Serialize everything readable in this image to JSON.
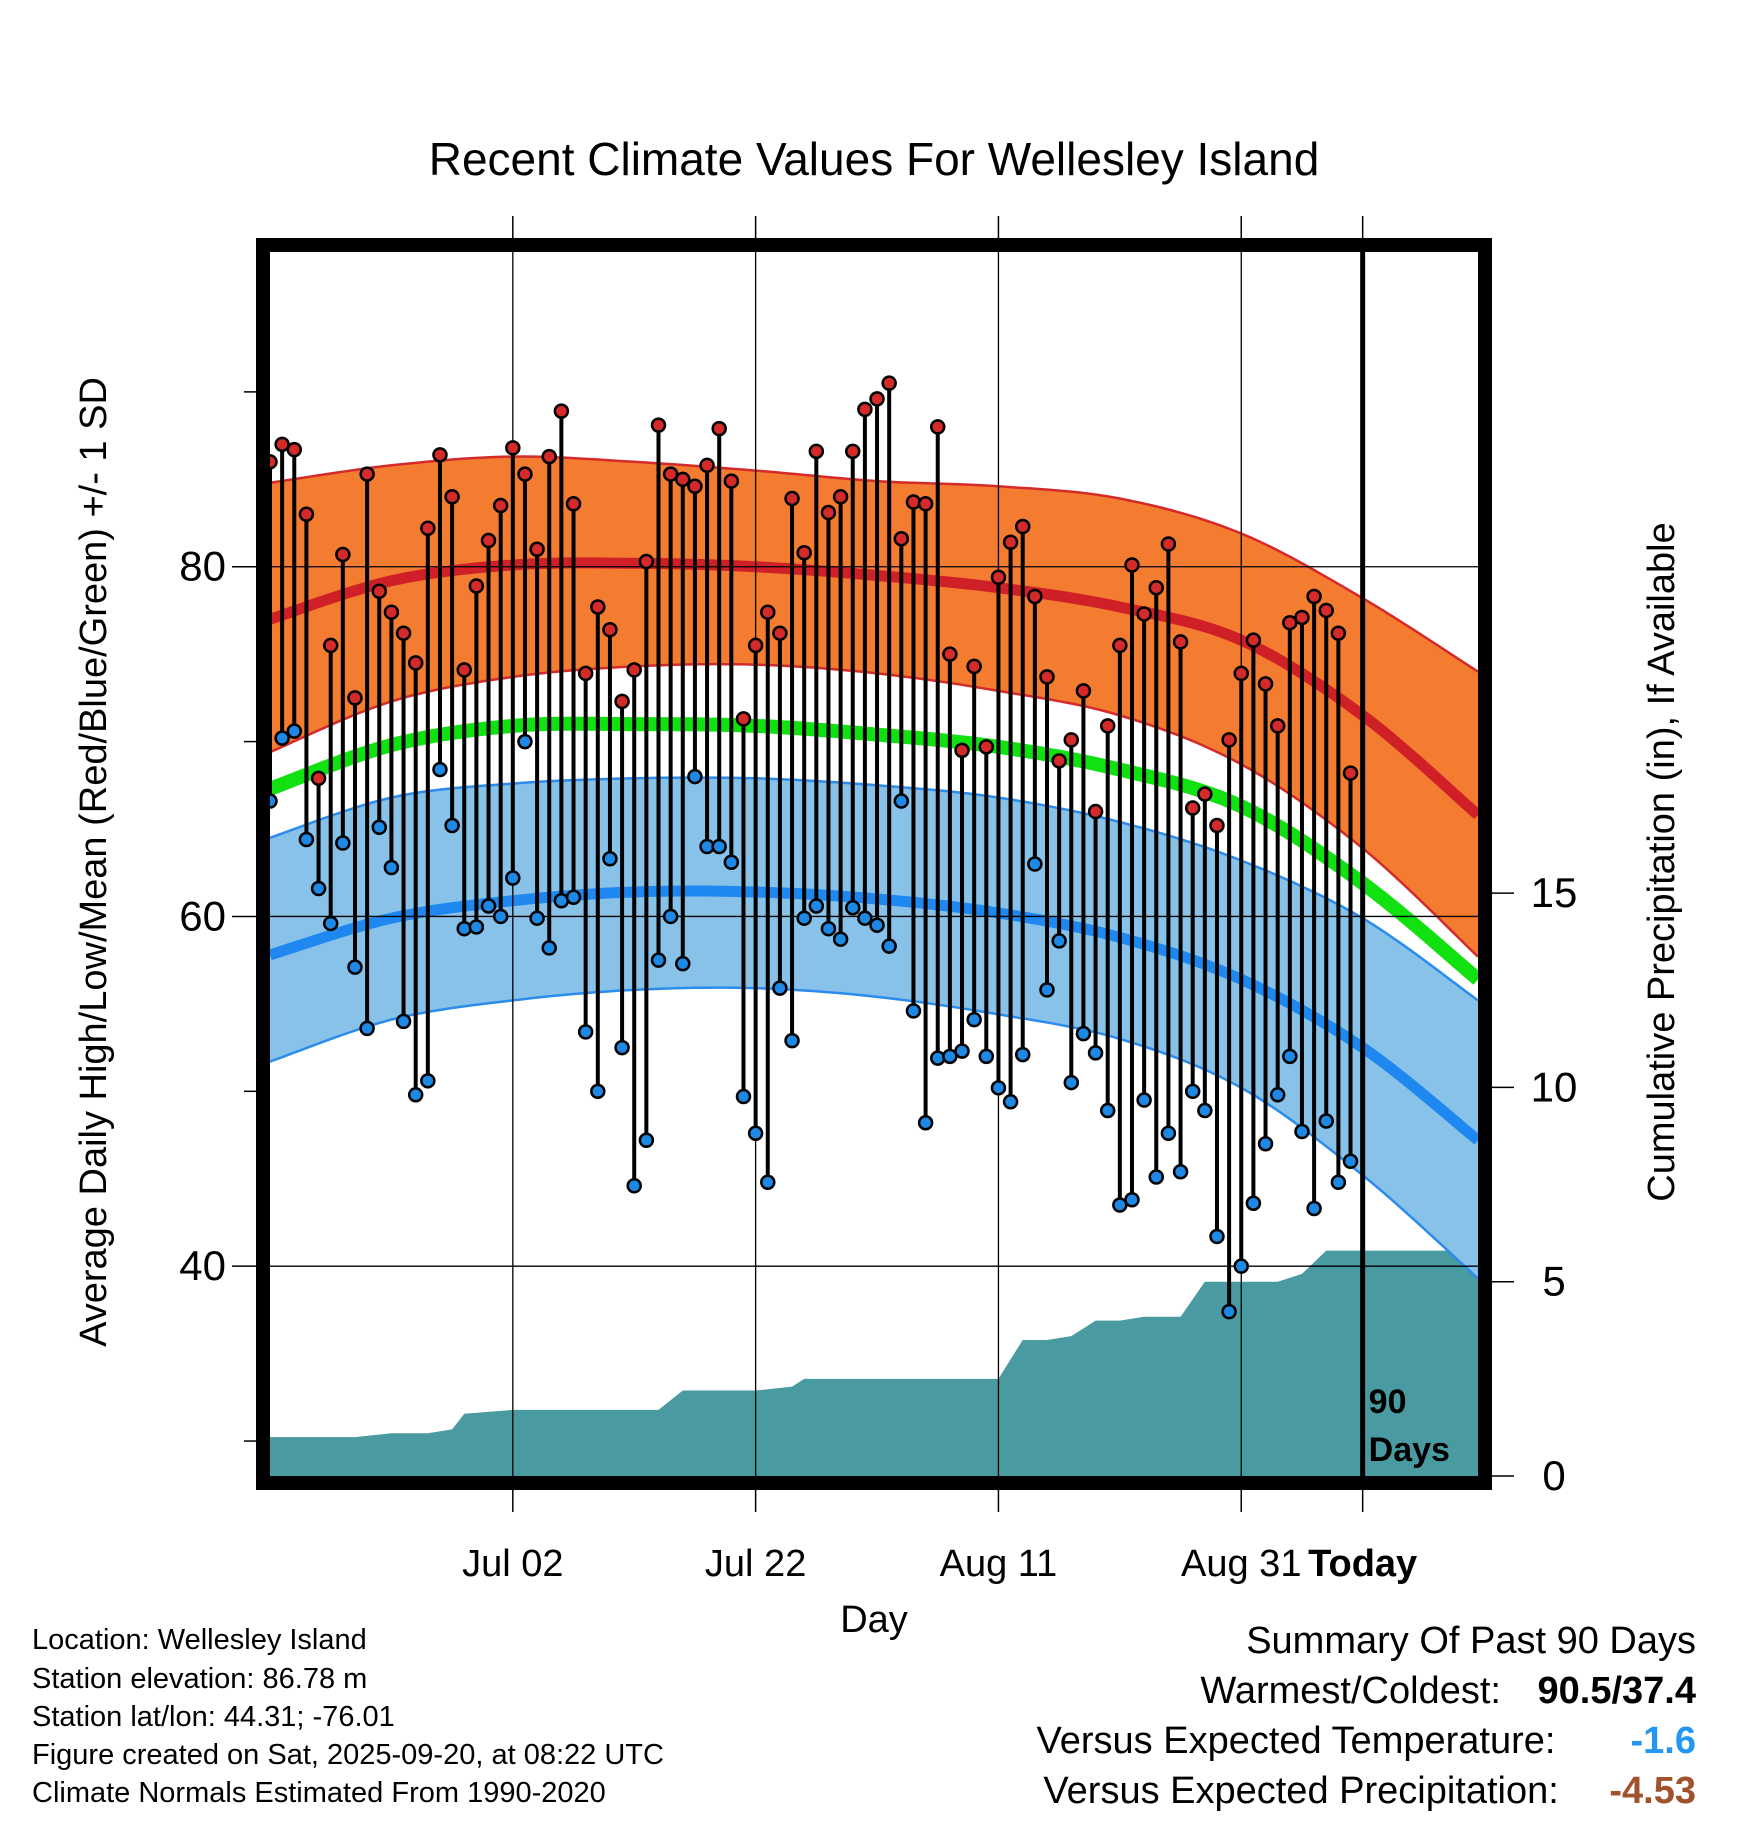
{
  "chart_data": {
    "type": "scatter",
    "title": "Recent Climate Values For Wellesley Island",
    "xlabel": "Day",
    "ylabel_left": "Average Daily High/Low/Mean (Red/Blue/Green) +/- 1 SD",
    "ylabel_right": "Cumulative Precipitation (in), If Available",
    "x_range_days": [
      -90,
      9.5
    ],
    "ylim_temp": [
      28,
      98
    ],
    "ylim_precip": [
      0,
      31.5
    ],
    "x_ticks": [
      {
        "day": -70,
        "label": "Jul 02"
      },
      {
        "day": -50,
        "label": "Jul 22"
      },
      {
        "day": -30,
        "label": "Aug 11"
      },
      {
        "day": -10,
        "label": "Aug 31"
      },
      {
        "day": 0,
        "label": "Today"
      }
    ],
    "y_ticks_left": [
      {
        "value": 40,
        "label": "40"
      },
      {
        "value": 60,
        "label": "60"
      },
      {
        "value": 80,
        "label": "80"
      }
    ],
    "y_minor_ticks_left": [
      30,
      50,
      70,
      90
    ],
    "y_ticks_right": [
      {
        "value": 0,
        "label": "0"
      },
      {
        "value": 5,
        "label": "5"
      },
      {
        "value": 10,
        "label": "10"
      },
      {
        "value": 15,
        "label": "15"
      }
    ],
    "today_annotation": [
      "90",
      "Days"
    ],
    "normals": {
      "day": [
        -90,
        -80,
        -70,
        -60,
        -50,
        -40,
        -30,
        -20,
        -10,
        0,
        9.5
      ],
      "high_mean": [
        77.0,
        79.2,
        80.1,
        80.2,
        80.0,
        79.5,
        78.8,
        77.7,
        75.8,
        71.5,
        65.8
      ],
      "high_upper": [
        84.8,
        85.8,
        86.3,
        86.0,
        85.5,
        84.9,
        84.6,
        83.9,
        81.9,
        78.2,
        74.0
      ],
      "high_lower": [
        69.4,
        72.3,
        73.7,
        74.3,
        74.4,
        73.9,
        72.9,
        71.5,
        68.7,
        63.9,
        57.7
      ],
      "mean": [
        67.3,
        69.8,
        70.9,
        71.0,
        70.9,
        70.4,
        69.7,
        68.4,
        66.3,
        61.9,
        56.4
      ],
      "low_mean": [
        57.8,
        59.9,
        60.9,
        61.4,
        61.4,
        61.0,
        60.2,
        58.8,
        56.4,
        52.5,
        47.2
      ],
      "low_upper": [
        64.5,
        66.8,
        67.6,
        67.9,
        67.9,
        67.5,
        66.8,
        65.4,
        63.2,
        59.9,
        55.2
      ],
      "low_lower": [
        51.7,
        54.1,
        55.2,
        55.8,
        55.9,
        55.4,
        54.4,
        53.0,
        50.2,
        45.2,
        39.3
      ]
    },
    "series": [
      {
        "name": "Daily High",
        "color": "#d42a2a",
        "values": [
          86.0,
          87.0,
          86.7,
          83.0,
          67.9,
          75.5,
          80.7,
          72.5,
          85.3,
          78.6,
          77.4,
          76.2,
          74.5,
          82.2,
          86.4,
          84.0,
          74.1,
          78.9,
          81.5,
          83.5,
          86.8,
          85.3,
          81.0,
          86.3,
          88.9,
          83.6,
          73.9,
          77.7,
          76.4,
          72.3,
          74.1,
          80.3,
          88.1,
          85.3,
          85.0,
          84.6,
          85.8,
          87.9,
          84.9,
          71.3,
          75.5,
          77.4,
          76.2,
          83.9,
          80.8,
          86.6,
          83.1,
          84.0,
          86.6,
          89.0,
          89.6,
          90.5,
          81.6,
          83.7,
          83.6,
          88.0,
          75.0,
          69.5,
          74.3,
          69.7,
          79.4,
          81.4,
          82.3,
          78.3,
          73.7,
          68.9,
          70.1,
          72.9,
          66.0,
          70.9,
          75.5,
          80.1,
          77.3,
          78.8,
          81.3,
          75.7,
          66.2,
          67.0,
          65.2,
          70.1,
          73.9,
          75.8,
          73.3,
          70.9,
          76.8,
          77.1,
          78.3,
          77.5,
          76.2,
          68.2
        ]
      },
      {
        "name": "Daily Low",
        "color": "#1e88e5",
        "values": [
          66.6,
          70.2,
          70.6,
          64.4,
          61.6,
          59.6,
          64.2,
          57.1,
          53.6,
          65.1,
          62.8,
          54.0,
          49.8,
          50.6,
          68.4,
          65.2,
          59.3,
          59.4,
          60.6,
          60.0,
          62.2,
          70.0,
          59.9,
          58.2,
          60.9,
          61.1,
          53.4,
          50.0,
          63.3,
          52.5,
          44.6,
          47.2,
          57.5,
          60.0,
          57.3,
          68.0,
          64.0,
          64.0,
          63.1,
          49.7,
          47.6,
          44.8,
          55.9,
          52.9,
          59.9,
          60.6,
          59.3,
          58.7,
          60.5,
          59.9,
          59.5,
          58.3,
          66.6,
          54.6,
          48.2,
          51.9,
          52.0,
          52.3,
          54.1,
          52.0,
          50.2,
          49.4,
          52.1,
          63.0,
          55.8,
          58.6,
          50.5,
          53.3,
          52.2,
          48.9,
          43.5,
          43.8,
          49.5,
          45.1,
          47.6,
          45.4,
          50.0,
          48.9,
          41.7,
          37.4,
          40.0,
          43.6,
          47.0,
          49.8,
          52.0,
          47.7,
          43.3,
          48.3,
          44.8,
          46.0
        ]
      }
    ],
    "precip_cumulative": {
      "day": [
        -90,
        -83,
        -80,
        -77,
        -75,
        -74,
        -70,
        -64,
        -60,
        -58,
        -56,
        -55,
        -54,
        -50,
        -47,
        -46,
        -44,
        -30,
        -28,
        -27,
        -26,
        -24,
        -22,
        -20,
        -18,
        -15,
        -13,
        -11,
        -9,
        -7,
        -5,
        -3,
        -2,
        0,
        9.5
      ],
      "values": [
        1.0,
        1.0,
        1.1,
        1.1,
        1.2,
        1.6,
        1.7,
        1.7,
        1.7,
        1.7,
        2.2,
        2.2,
        2.2,
        2.2,
        2.3,
        2.5,
        2.5,
        2.5,
        3.5,
        3.5,
        3.5,
        3.6,
        4.0,
        4.0,
        4.1,
        4.1,
        5.0,
        5.0,
        5.0,
        5.0,
        5.2,
        5.8,
        5.8,
        5.8,
        5.8
      ]
    }
  },
  "location_info": {
    "location": "Location: Wellesley Island",
    "elevation": "Station elevation: 86.78 m",
    "latlon": "Station lat/lon: 44.31; -76.01",
    "created": "Figure created on Sat, 2025-09-20, at 08:22 UTC",
    "normals": "Climate Normals Estimated From 1990-2020"
  },
  "summary": {
    "title": "Summary Of Past 90 Days",
    "warmest_coldest_label": "Warmest/Coldest:",
    "warmest_coldest_value": "90.5/37.4",
    "temp_label": "Versus Expected Temperature:",
    "temp_value": "-1.6",
    "precip_label": "Versus Expected Precipitation:",
    "precip_value": "-4.53"
  },
  "colors": {
    "high_band": "#f47c30",
    "high_edge": "#d42a2a",
    "high_mean": "#cf2027",
    "mean_line": "#11e011",
    "low_band": "#88c2e8",
    "low_edge": "#2b8cee",
    "low_mean": "#1e88f0",
    "precip_fill": "#4a9aa2",
    "temp_anomaly": "#2196f3",
    "precip_anomaly": "#a0522d"
  }
}
